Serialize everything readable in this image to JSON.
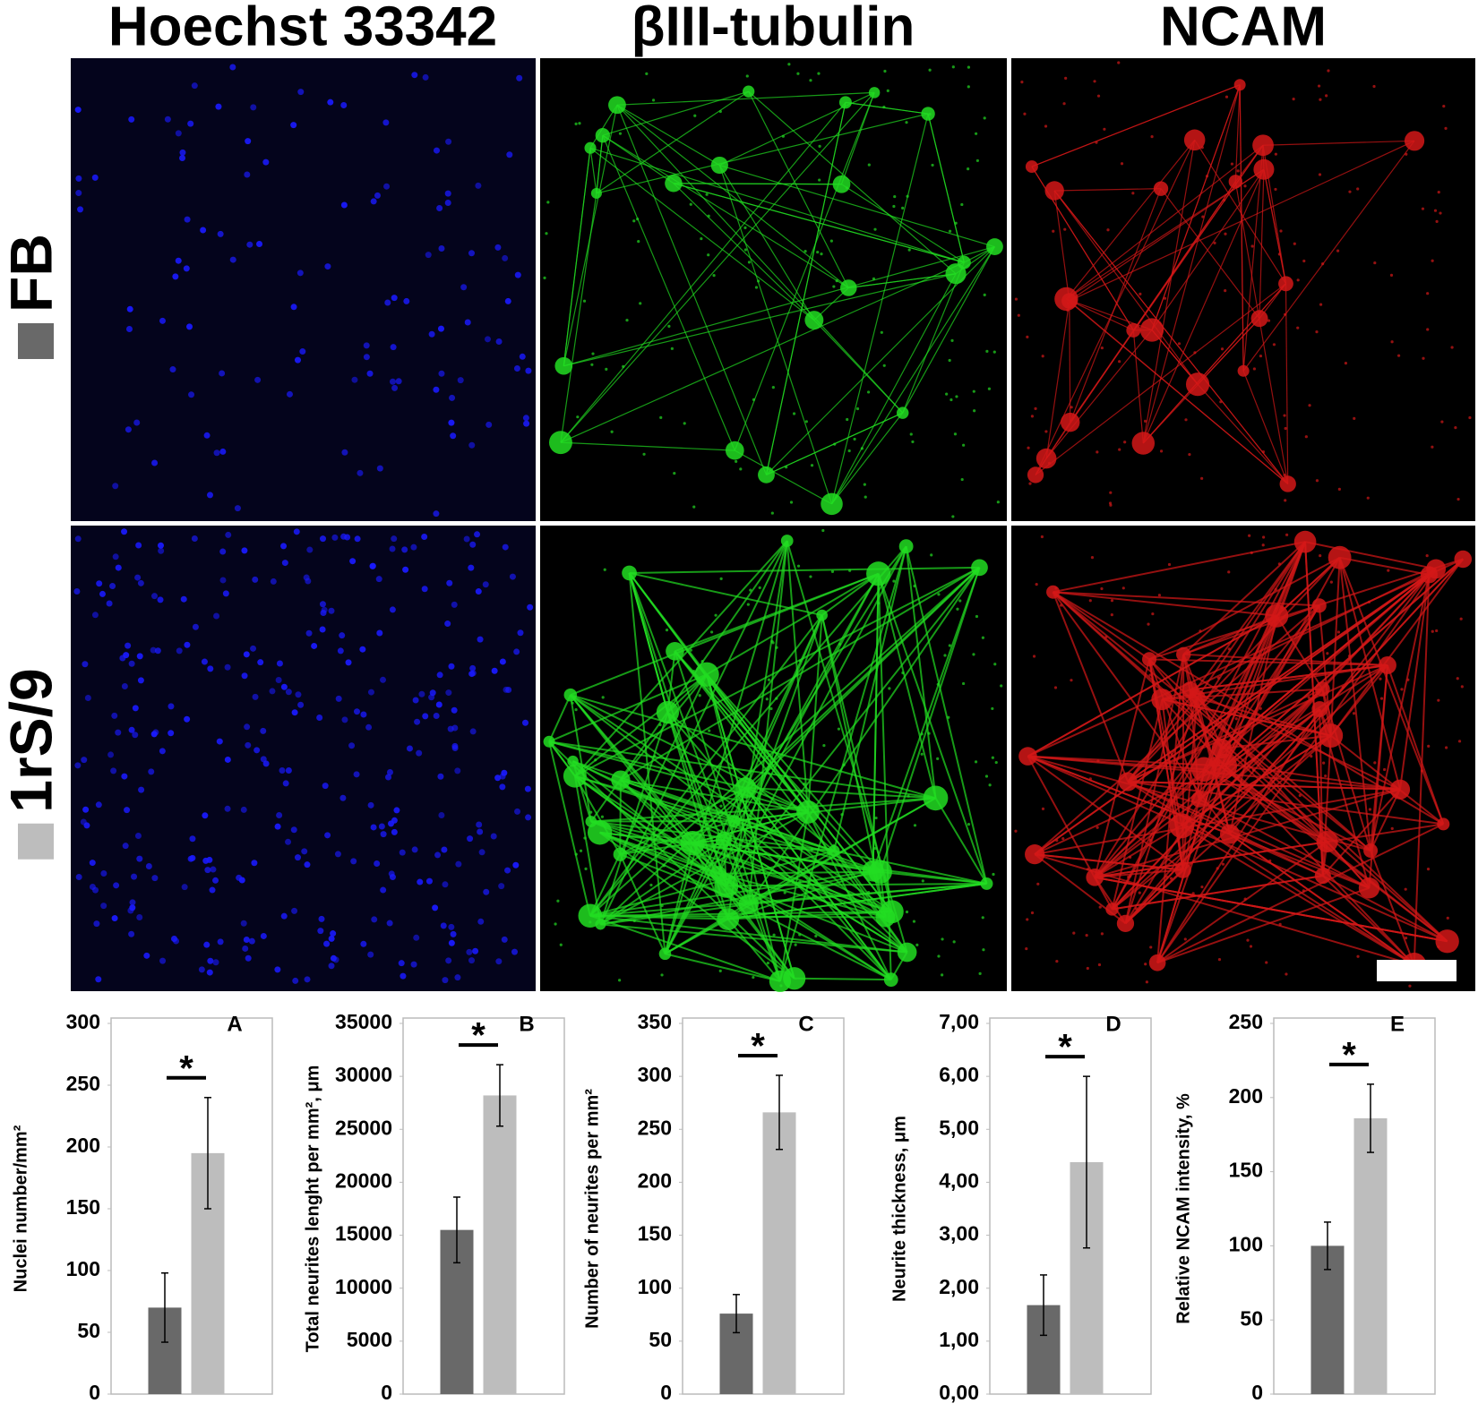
{
  "image_grid": {
    "columns": [
      "Hoechst 33342",
      "βIII-tubulin",
      "NCAM"
    ],
    "rows": [
      {
        "label": "FB",
        "color": "#696969"
      },
      {
        "label": "1rS/9",
        "color": "#bdbdbd"
      }
    ]
  },
  "chart_data": [
    {
      "type": "bar",
      "panel": "A",
      "y_label": "Nuclei number/mm²",
      "values": [
        70,
        195
      ],
      "errors": [
        28,
        45
      ],
      "colors": [
        "#696969",
        "#bdbdbd"
      ],
      "significance": "*",
      "ylim": [
        0,
        300
      ],
      "yticks": [
        0,
        50,
        100,
        150,
        200,
        250,
        300
      ]
    },
    {
      "type": "bar",
      "panel": "B",
      "y_label": "Total neurites lenght per mm², μm",
      "values": [
        15500,
        28200
      ],
      "errors": [
        3100,
        2900
      ],
      "colors": [
        "#696969",
        "#bdbdbd"
      ],
      "significance": "*",
      "ylim": [
        0,
        35000
      ],
      "yticks": [
        0,
        5000,
        10000,
        15000,
        20000,
        25000,
        30000,
        35000
      ]
    },
    {
      "type": "bar",
      "panel": "C",
      "y_label": "Number of neurites per mm²",
      "values": [
        76,
        266
      ],
      "errors": [
        18,
        35
      ],
      "colors": [
        "#696969",
        "#bdbdbd"
      ],
      "significance": "*",
      "ylim": [
        0,
        350
      ],
      "yticks": [
        0,
        50,
        100,
        150,
        200,
        250,
        300,
        350
      ]
    },
    {
      "type": "bar",
      "panel": "D",
      "y_label": "Neurite thickness, μm",
      "values": [
        1.68,
        4.38
      ],
      "errors": [
        0.57,
        1.62
      ],
      "colors": [
        "#696969",
        "#bdbdbd"
      ],
      "significance": "*",
      "ylim": [
        0,
        7
      ],
      "yticks": [
        {
          "value": 0,
          "label": "0,00"
        },
        {
          "value": 1,
          "label": "1,00"
        },
        {
          "value": 2,
          "label": "2,00"
        },
        {
          "value": 3,
          "label": "3,00"
        },
        {
          "value": 4,
          "label": "4,00"
        },
        {
          "value": 5,
          "label": "5,00"
        },
        {
          "value": 6,
          "label": "6,00"
        },
        {
          "value": 7,
          "label": "7,00"
        }
      ]
    },
    {
      "type": "bar",
      "panel": "E",
      "y_label": "Relative NCAM intensity, %",
      "values": [
        100,
        186
      ],
      "errors": [
        16,
        23
      ],
      "colors": [
        "#696969",
        "#bdbdbd"
      ],
      "significance": "*",
      "ylim": [
        0,
        250
      ],
      "yticks": [
        0,
        50,
        100,
        150,
        200,
        250
      ]
    }
  ]
}
